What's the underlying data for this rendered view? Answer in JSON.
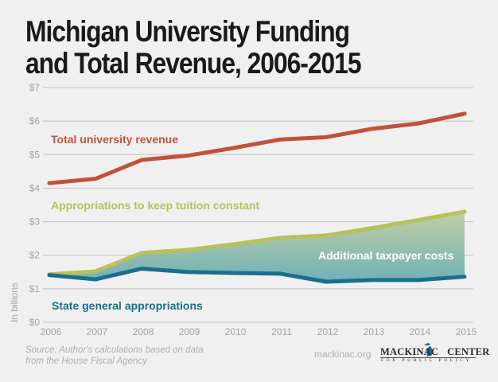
{
  "title": {
    "line1": "Michigan University Funding",
    "line2": "and Total Revenue, 2006-2015"
  },
  "chart_data": {
    "type": "line",
    "title": "Michigan University Funding and Total Revenue, 2006-2015",
    "xlabel": "",
    "ylabel": "In billions",
    "x": [
      "2006",
      "2007",
      "2008",
      "2009",
      "2010",
      "2011",
      "2012",
      "2013",
      "2014",
      "2015"
    ],
    "ylim": [
      0,
      7
    ],
    "yticks": [
      0,
      1,
      2,
      3,
      4,
      5,
      6,
      7
    ],
    "ytick_labels": [
      "$0",
      "$1",
      "$2",
      "$3",
      "$4",
      "$5",
      "$6",
      "$7"
    ],
    "grid": true,
    "series": [
      {
        "name": "Total university revenue",
        "color": "#c0523a",
        "values": [
          4.15,
          4.28,
          4.84,
          4.97,
          5.2,
          5.45,
          5.52,
          5.77,
          5.93,
          6.22
        ]
      },
      {
        "name": "Appropriations to keep tuition constant",
        "color": "#b8c15a",
        "values": [
          1.43,
          1.52,
          2.07,
          2.16,
          2.33,
          2.52,
          2.59,
          2.81,
          3.05,
          3.3
        ]
      },
      {
        "name": "State general appropriations",
        "color": "#1a6f8a",
        "values": [
          1.41,
          1.28,
          1.6,
          1.5,
          1.47,
          1.45,
          1.21,
          1.26,
          1.26,
          1.36
        ]
      }
    ],
    "shaded_area": {
      "label": "Additional taxpayer costs",
      "between": [
        "Appropriations to keep tuition constant",
        "State general appropriations"
      ],
      "color_top": "#c2cfa4",
      "color_bottom": "#6fb1b9"
    },
    "annotations": [
      "Total university revenue",
      "Appropriations to keep tuition constant",
      "State general appropriations",
      "Additional taxpayer costs"
    ]
  },
  "footer": {
    "source_line1": "Source: Author's calculations based on data",
    "source_line2": "from the House Fiscal Agency",
    "site": "mackinac.org",
    "logo_main_left": "MACKINAC",
    "logo_main_right": "CENTER",
    "logo_sub": "FOR PUBLIC POLICY"
  }
}
